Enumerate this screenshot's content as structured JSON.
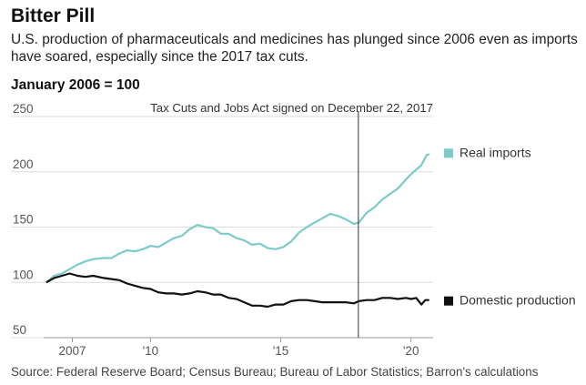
{
  "header": {
    "title": "Bitter Pill",
    "subtitle": "U.S. production of pharmaceuticals and medicines has plunged since 2006 even as imports have soared, especially since the 2017 tax cuts.",
    "unit_label": "January 2006 = 100"
  },
  "source": "Source: Federal Reserve Board; Census Bureau; Bureau of Labor Statistics; Barron's calculations",
  "colors": {
    "imports": "#7ccbc6",
    "domestic": "#111111",
    "grid": "#dddddd",
    "axis": "#999999"
  },
  "chart_data": {
    "type": "line",
    "title": "Bitter Pill",
    "ylabel": "January 2006 = 100",
    "xlim": [
      2005.9,
      2020.85
    ],
    "ylim": [
      50,
      250
    ],
    "yticks": [
      {
        "value": 250,
        "label": "250"
      },
      {
        "value": 200,
        "label": "200"
      },
      {
        "value": 150,
        "label": "150"
      },
      {
        "value": 100,
        "label": "100"
      },
      {
        "value": 50,
        "label": "50"
      }
    ],
    "xticks": [
      {
        "value": 2007,
        "label": "2007"
      },
      {
        "value": 2010,
        "label": "'10"
      },
      {
        "value": 2015,
        "label": "'15"
      },
      {
        "value": 2020,
        "label": "'20"
      }
    ],
    "annotation": {
      "x": 2017.98,
      "label": "Tax Cuts and Jobs Act signed on December 22, 2017"
    },
    "grid": true,
    "series": [
      {
        "name": "Real imports",
        "color": "#7ccbc6",
        "points": [
          [
            2006.0,
            100
          ],
          [
            2006.3,
            106
          ],
          [
            2006.6,
            108
          ],
          [
            2006.9,
            112
          ],
          [
            2007.2,
            116
          ],
          [
            2007.5,
            119
          ],
          [
            2007.8,
            121
          ],
          [
            2008.2,
            122
          ],
          [
            2008.5,
            122
          ],
          [
            2008.8,
            126
          ],
          [
            2009.1,
            129
          ],
          [
            2009.4,
            128
          ],
          [
            2009.7,
            130
          ],
          [
            2010.0,
            133
          ],
          [
            2010.3,
            132
          ],
          [
            2010.6,
            136
          ],
          [
            2010.9,
            140
          ],
          [
            2011.2,
            142
          ],
          [
            2011.5,
            148
          ],
          [
            2011.8,
            152
          ],
          [
            2012.1,
            150
          ],
          [
            2012.4,
            149
          ],
          [
            2012.7,
            144
          ],
          [
            2013.0,
            144
          ],
          [
            2013.3,
            140
          ],
          [
            2013.6,
            138
          ],
          [
            2013.9,
            134
          ],
          [
            2014.2,
            135
          ],
          [
            2014.5,
            131
          ],
          [
            2014.8,
            130
          ],
          [
            2015.1,
            132
          ],
          [
            2015.4,
            137
          ],
          [
            2015.7,
            145
          ],
          [
            2016.0,
            150
          ],
          [
            2016.3,
            154
          ],
          [
            2016.6,
            158
          ],
          [
            2016.9,
            162
          ],
          [
            2017.2,
            160
          ],
          [
            2017.5,
            157
          ],
          [
            2017.8,
            153
          ],
          [
            2018.0,
            154
          ],
          [
            2018.3,
            163
          ],
          [
            2018.6,
            168
          ],
          [
            2018.9,
            175
          ],
          [
            2019.2,
            180
          ],
          [
            2019.5,
            185
          ],
          [
            2019.8,
            193
          ],
          [
            2020.1,
            200
          ],
          [
            2020.4,
            206
          ],
          [
            2020.6,
            215
          ],
          [
            2020.7,
            216
          ]
        ]
      },
      {
        "name": "Domestic production",
        "color": "#111111",
        "points": [
          [
            2006.0,
            100
          ],
          [
            2006.3,
            104
          ],
          [
            2006.6,
            106
          ],
          [
            2006.9,
            108
          ],
          [
            2007.2,
            106
          ],
          [
            2007.5,
            105
          ],
          [
            2007.8,
            106
          ],
          [
            2008.2,
            104
          ],
          [
            2008.5,
            103
          ],
          [
            2008.8,
            102
          ],
          [
            2009.1,
            99
          ],
          [
            2009.4,
            97
          ],
          [
            2009.7,
            95
          ],
          [
            2010.0,
            94
          ],
          [
            2010.3,
            91
          ],
          [
            2010.6,
            90
          ],
          [
            2010.9,
            90
          ],
          [
            2011.2,
            89
          ],
          [
            2011.5,
            90
          ],
          [
            2011.8,
            92
          ],
          [
            2012.1,
            91
          ],
          [
            2012.4,
            89
          ],
          [
            2012.7,
            89
          ],
          [
            2013.0,
            86
          ],
          [
            2013.3,
            85
          ],
          [
            2013.6,
            82
          ],
          [
            2013.9,
            79
          ],
          [
            2014.2,
            79
          ],
          [
            2014.5,
            78
          ],
          [
            2014.8,
            80
          ],
          [
            2015.1,
            80
          ],
          [
            2015.4,
            83
          ],
          [
            2015.7,
            84
          ],
          [
            2016.0,
            84
          ],
          [
            2016.3,
            83
          ],
          [
            2016.6,
            82
          ],
          [
            2016.9,
            82
          ],
          [
            2017.2,
            82
          ],
          [
            2017.5,
            82
          ],
          [
            2017.8,
            81
          ],
          [
            2018.0,
            83
          ],
          [
            2018.3,
            84
          ],
          [
            2018.6,
            84
          ],
          [
            2018.9,
            86
          ],
          [
            2019.2,
            86
          ],
          [
            2019.5,
            85
          ],
          [
            2019.8,
            86
          ],
          [
            2020.0,
            85
          ],
          [
            2020.2,
            86
          ],
          [
            2020.4,
            80
          ],
          [
            2020.55,
            84
          ],
          [
            2020.7,
            84
          ]
        ]
      }
    ]
  }
}
